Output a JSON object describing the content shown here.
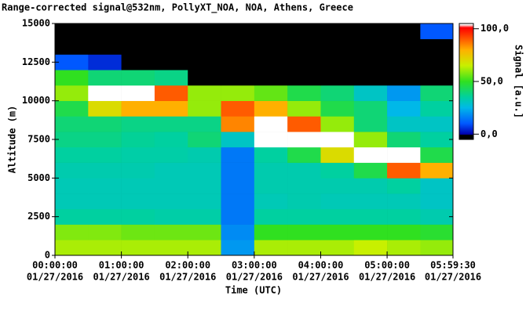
{
  "chart_data": {
    "type": "heatmap",
    "title": "Range-corrected signal@532nm, PollyXT_NOA, NOA, Athens, Greece",
    "x_label": "Time (UTC)",
    "y_label": "Altitude (m)",
    "colorbar_label": "Signal [a.u.]",
    "xlim": [
      0,
      21570
    ],
    "xticks": [
      {
        "value": 0,
        "label": "00:00:00"
      },
      {
        "value": 3600,
        "label": "01:00:00"
      },
      {
        "value": 7200,
        "label": "02:00:00"
      },
      {
        "value": 10800,
        "label": "03:00:00"
      },
      {
        "value": 14400,
        "label": "04:00:00"
      },
      {
        "value": 18000,
        "label": "05:00:00"
      },
      {
        "value": 21570,
        "label": "05:59:30"
      }
    ],
    "xtick_dates": [
      "01/27/2016",
      "01/27/2016",
      "01/27/2016",
      "01/27/2016",
      "01/27/2016",
      "01/27/2016",
      "01/27/2016"
    ],
    "ylim": [
      0,
      15000
    ],
    "yticks": [
      0,
      2500,
      5000,
      7500,
      10000,
      12500,
      15000
    ],
    "clim": [
      -5,
      105
    ],
    "cticks": [
      {
        "value": 0,
        "label": "0,0"
      },
      {
        "value": 50,
        "label": "50,0"
      },
      {
        "value": 100,
        "label": "100,0"
      }
    ],
    "colormap": [
      [
        -5,
        "#000000"
      ],
      [
        -1,
        "#000000"
      ],
      [
        0,
        "#0000b0"
      ],
      [
        10,
        "#0058ff"
      ],
      [
        25,
        "#00b8e8"
      ],
      [
        35,
        "#00d0a0"
      ],
      [
        50,
        "#30e020"
      ],
      [
        65,
        "#c8f000"
      ],
      [
        80,
        "#ffb000"
      ],
      [
        95,
        "#ff3000"
      ],
      [
        101,
        "#ff0000"
      ],
      [
        104,
        "#ffffff"
      ],
      [
        105,
        "#ffffff"
      ]
    ],
    "x_edges": [
      0,
      1800,
      3600,
      5400,
      7200,
      9000,
      10800,
      12600,
      14400,
      16200,
      18000,
      19800,
      21570
    ],
    "y_edges": [
      0,
      1000,
      2000,
      3000,
      4000,
      5000,
      6000,
      7000,
      8000,
      9000,
      10000,
      11000,
      12000,
      13000,
      14000,
      15000
    ],
    "z": [
      [
        62,
        62,
        62,
        62,
        62,
        20,
        62,
        62,
        62,
        65,
        62,
        60
      ],
      [
        58,
        58,
        56,
        56,
        56,
        18,
        50,
        50,
        50,
        50,
        50,
        48
      ],
      [
        35,
        35,
        35,
        34,
        34,
        15,
        35,
        35,
        35,
        35,
        35,
        33
      ],
      [
        32,
        32,
        32,
        32,
        32,
        15,
        32,
        33,
        32,
        32,
        32,
        30
      ],
      [
        32,
        32,
        32,
        32,
        32,
        15,
        33,
        33,
        33,
        33,
        35,
        30
      ],
      [
        33,
        33,
        33,
        32,
        32,
        15,
        33,
        33,
        35,
        45,
        90,
        80
      ],
      [
        35,
        35,
        34,
        34,
        33,
        15,
        35,
        45,
        70,
        105,
        105,
        45
      ],
      [
        38,
        38,
        36,
        35,
        40,
        30,
        105,
        105,
        105,
        60,
        40,
        35
      ],
      [
        40,
        40,
        38,
        38,
        38,
        85,
        105,
        90,
        60,
        40,
        30,
        30
      ],
      [
        45,
        70,
        80,
        80,
        60,
        90,
        80,
        60,
        45,
        40,
        25,
        35
      ],
      [
        60,
        105,
        105,
        90,
        60,
        60,
        55,
        45,
        40,
        30,
        20,
        40
      ],
      [
        50,
        40,
        40,
        38,
        -3,
        -3,
        -3,
        -3,
        -3,
        -3,
        -3,
        -3
      ],
      [
        10,
        5,
        -3,
        -3,
        -3,
        -3,
        -3,
        -3,
        -3,
        -3,
        -3,
        -3
      ],
      [
        -3,
        -3,
        -3,
        -3,
        -3,
        -3,
        -3,
        -3,
        -3,
        -3,
        -3,
        -3
      ],
      [
        -3,
        -3,
        -3,
        -3,
        -3,
        -3,
        -3,
        -3,
        -3,
        -3,
        -3,
        10
      ]
    ]
  }
}
